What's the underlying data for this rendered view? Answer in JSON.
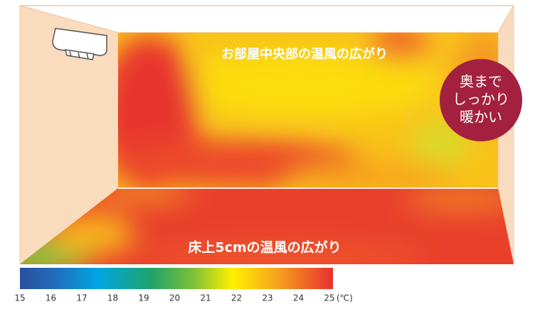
{
  "room": {
    "wall_label": "お部屋中央部の温風の広がり",
    "floor_label": "床上5cmの温風の広がり",
    "badge_lines": [
      "奥まで",
      "しっかり",
      "暖かい"
    ]
  },
  "scale": {
    "ticks": [
      "15",
      "16",
      "17",
      "18",
      "19",
      "20",
      "21",
      "22",
      "23",
      "24",
      "25"
    ],
    "unit": "(℃)"
  }
}
